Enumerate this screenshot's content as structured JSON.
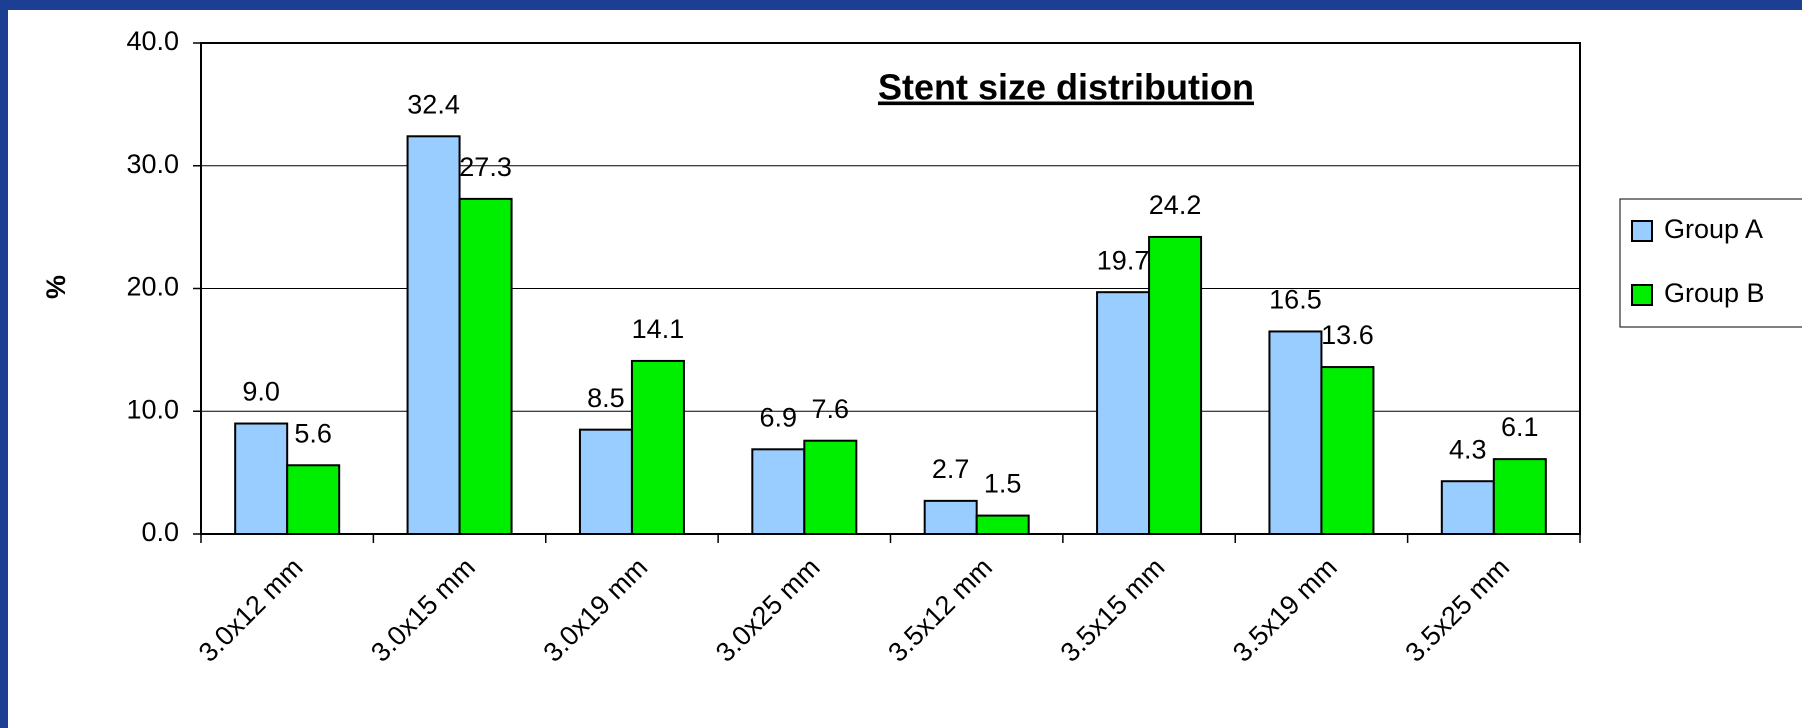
{
  "chart_data": {
    "type": "bar",
    "title": "Stent size distribution",
    "y_label": "%",
    "categories": [
      "3.0x12 mm",
      "3.0x15 mm",
      "3.0x19 mm",
      "3.0x25 mm",
      "3.5x12 mm",
      "3.5x15 mm",
      "3.5x19 mm",
      "3.5x25 mm"
    ],
    "series": [
      {
        "name": "Group A",
        "color": "#99ccff",
        "values": [
          9.0,
          32.4,
          8.5,
          6.9,
          2.7,
          19.7,
          16.5,
          4.3
        ],
        "value_labels": [
          "9.0",
          "32.4",
          "8.5",
          "6.9",
          "2.7",
          "19.7",
          "16.5",
          "4.3"
        ]
      },
      {
        "name": "Group B",
        "color": "#00ee00",
        "values": [
          5.6,
          27.3,
          14.1,
          7.6,
          1.5,
          24.2,
          13.6,
          6.1
        ],
        "value_labels": [
          "5.6",
          "27.3",
          "14.1",
          "7.6",
          "1.5",
          "24.2",
          "13.6",
          "6.1"
        ]
      }
    ],
    "ylim": [
      0,
      40
    ],
    "yticks": [
      {
        "value": 0,
        "label": "0.0"
      },
      {
        "value": 10,
        "label": "10.0"
      },
      {
        "value": 20,
        "label": "20.0"
      },
      {
        "value": 30,
        "label": "30.0"
      },
      {
        "value": 40,
        "label": "40.0"
      }
    ],
    "grid": true,
    "legend": "right"
  }
}
